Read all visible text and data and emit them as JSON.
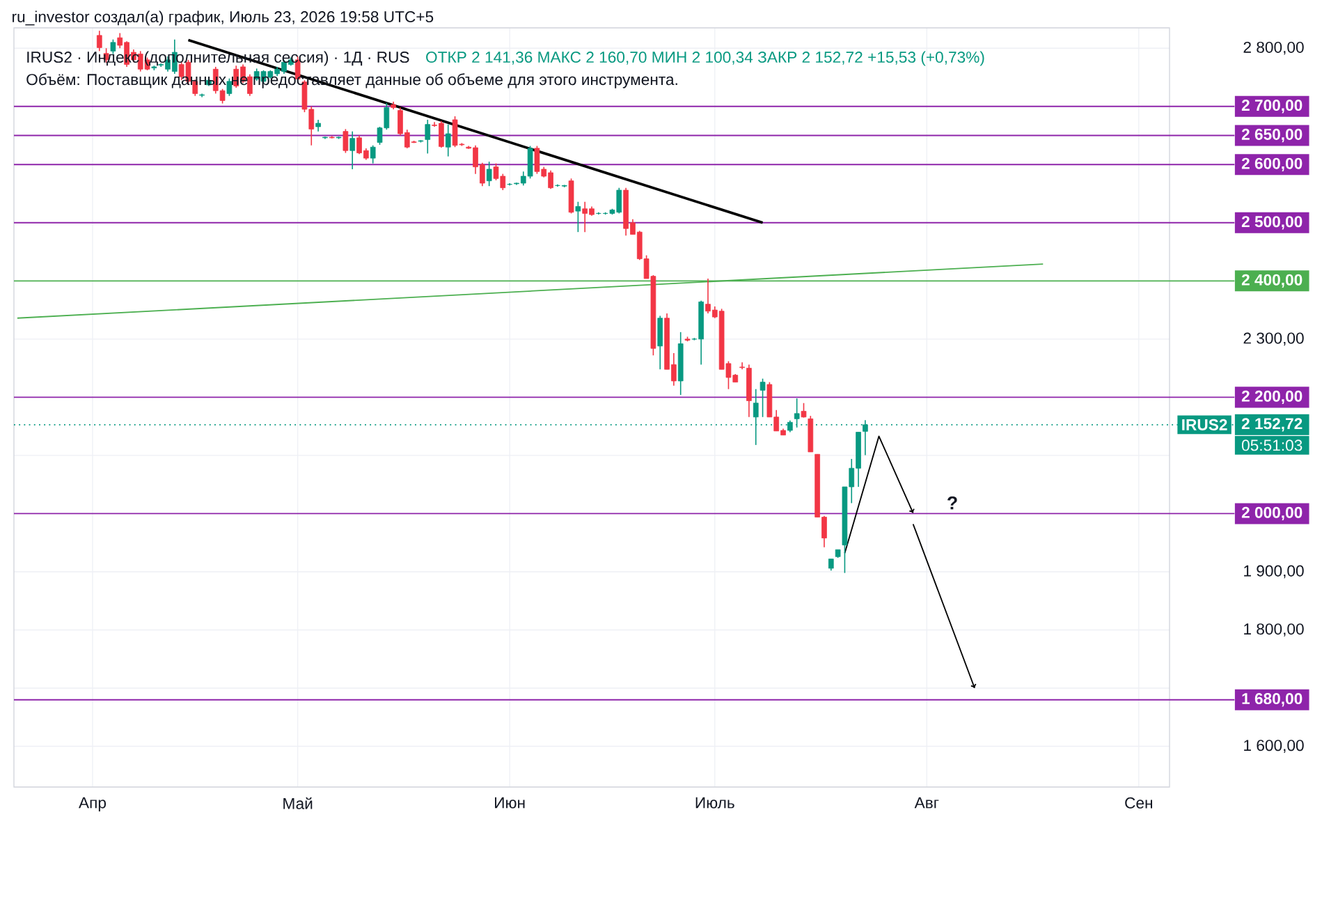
{
  "chart_data": {
    "type": "candlestick",
    "title": "IRUS2 · Индекс (дополнительная сессия) · 1Д · RUS",
    "subtitle": "ОТКР 2 141,36  МАКС 2 160,70  МИН 2 100,34  ЗАКР 2 152,72  +15,53 (+0,73%)",
    "annotations": [
      "ru_investor создал(а) график, Июль 23, 2026 19:58 UTC+5",
      "Объём: Поставщик данных не предоставляет данные об объеме для этого инструмента.",
      "IRUS2",
      "05:51:03",
      "?"
    ],
    "categories": [
      null,
      null,
      null,
      null,
      null,
      null,
      null,
      null,
      null,
      null,
      null,
      "Апр",
      null,
      null,
      null,
      null,
      null,
      null,
      null,
      null,
      null,
      null,
      null,
      null,
      null,
      null,
      null,
      null,
      null,
      null,
      null,
      null,
      null,
      null,
      null,
      null,
      null,
      null,
      null,
      null,
      null,
      "Май",
      null,
      null,
      null,
      null,
      null,
      null,
      null,
      null,
      null,
      null,
      null,
      null,
      null,
      null,
      null,
      null,
      null,
      null,
      null,
      null,
      null,
      null,
      null,
      null,
      null,
      null,
      null,
      null,
      null,
      null,
      "Июн",
      null,
      null,
      null,
      null,
      null,
      null,
      null,
      null,
      null,
      null,
      null,
      null,
      null,
      null,
      null,
      null,
      null,
      null,
      null,
      null,
      null,
      null,
      null,
      null,
      null,
      null,
      null,
      null,
      null,
      "Июль",
      null,
      null,
      null,
      null,
      null,
      null,
      null,
      null,
      null,
      null,
      null,
      null,
      null,
      null,
      null,
      null,
      null,
      null,
      null,
      null,
      null,
      null,
      null,
      null,
      null,
      null,
      null,
      null,
      null,
      null,
      "Авг",
      null,
      null,
      null,
      null,
      null,
      null,
      null,
      null,
      null,
      null,
      null,
      null,
      null,
      null,
      null,
      null,
      null,
      null,
      null,
      null,
      null,
      null,
      null,
      null,
      null,
      null,
      null,
      null,
      null,
      null,
      "Сен",
      null,
      null,
      null,
      null
    ],
    "ohlc": [
      null,
      null,
      null,
      null,
      null,
      null,
      null,
      null,
      null,
      null,
      null,
      null,
      [
        2822,
        2830,
        2795,
        2801
      ],
      [
        2791,
        2800,
        2775,
        2780
      ],
      [
        2795,
        2815,
        2790,
        2810
      ],
      [
        2818,
        2826,
        2800,
        2805
      ],
      [
        2810,
        2812,
        2768,
        2772
      ],
      [
        2793,
        2798,
        2776,
        2780
      ],
      [
        2790,
        2795,
        2760,
        2764
      ],
      [
        2780,
        2784,
        2762,
        2764
      ],
      [
        2766,
        2770,
        2762,
        2768
      ],
      [
        2771,
        2774,
        2768,
        2772
      ],
      [
        2764,
        2786,
        2760,
        2780
      ],
      [
        2760,
        2815,
        2756,
        2793
      ],
      [
        2772,
        2776,
        2745,
        2751
      ],
      [
        2776,
        2780,
        2738,
        2743
      ],
      [
        2743,
        2746,
        2718,
        2722
      ],
      [
        2719,
        2722,
        2716,
        2720
      ],
      [
        2737,
        2750,
        2735,
        2745
      ],
      [
        2764,
        2768,
        2722,
        2727
      ],
      [
        2727,
        2730,
        2705,
        2710
      ],
      [
        2722,
        2748,
        2718,
        2743
      ],
      [
        2764,
        2770,
        2732,
        2735
      ],
      [
        2768,
        2772,
        2740,
        2743
      ],
      [
        2751,
        2755,
        2718,
        2722
      ],
      [
        2747,
        2765,
        2744,
        2760
      ],
      [
        2743,
        2762,
        2740,
        2760
      ],
      [
        2750,
        2762,
        2748,
        2760
      ],
      [
        2756,
        2768,
        2752,
        2764
      ],
      [
        2760,
        2780,
        2756,
        2776
      ],
      [
        2772,
        2784,
        2770,
        2780
      ],
      [
        2780,
        2786,
        2745,
        2747
      ],
      [
        2742,
        2745,
        2690,
        2695
      ],
      [
        2695,
        2700,
        2633,
        2661
      ],
      [
        2665,
        2677,
        2657,
        2671
      ],
      [
        2646,
        2648,
        2644,
        2647
      ],
      [
        2647,
        2649,
        2645,
        2646
      ],
      [
        2646,
        2648,
        2644,
        2647
      ],
      [
        2657,
        2661,
        2620,
        2624
      ],
      [
        2624,
        2657,
        2592,
        2645
      ],
      [
        2646,
        2650,
        2618,
        2620
      ],
      [
        2624,
        2628,
        2608,
        2611
      ],
      [
        2611,
        2633,
        2602,
        2630
      ],
      [
        2638,
        2665,
        2634,
        2663
      ],
      [
        2663,
        2706,
        2660,
        2698
      ],
      [
        2703,
        2708,
        2695,
        2698
      ],
      [
        2693,
        2698,
        2650,
        2653
      ],
      [
        2655,
        2660,
        2628,
        2630
      ],
      [
        2639,
        2641,
        2637,
        2638
      ],
      [
        2640,
        2642,
        2638,
        2641
      ],
      [
        2643,
        2677,
        2619,
        2669
      ],
      [
        2668,
        2673,
        2665,
        2667
      ],
      [
        2671,
        2675,
        2629,
        2631
      ],
      [
        2630,
        2669,
        2614,
        2653
      ],
      [
        2677,
        2683,
        2630,
        2633
      ],
      [
        2635,
        2637,
        2632,
        2634
      ],
      [
        2630,
        2632,
        2627,
        2628
      ],
      [
        2629,
        2633,
        2584,
        2596
      ],
      [
        2600,
        2603,
        2563,
        2568
      ],
      [
        2572,
        2605,
        2563,
        2592
      ],
      [
        2596,
        2602,
        2573,
        2576
      ],
      [
        2580,
        2584,
        2556,
        2560
      ],
      [
        2566,
        2568,
        2564,
        2566
      ],
      [
        2567,
        2569,
        2565,
        2568
      ],
      [
        2568,
        2588,
        2564,
        2580
      ],
      [
        2580,
        2632,
        2576,
        2628
      ],
      [
        2628,
        2632,
        2584,
        2588
      ],
      [
        2592,
        2596,
        2578,
        2580
      ],
      [
        2586,
        2590,
        2558,
        2560
      ],
      [
        2564,
        2566,
        2562,
        2564
      ],
      [
        2563,
        2565,
        2561,
        2564
      ],
      [
        2572,
        2576,
        2516,
        2518
      ],
      [
        2520,
        2536,
        2484,
        2528
      ],
      [
        2524,
        2536,
        2484,
        2516
      ],
      [
        2524,
        2528,
        2512,
        2514
      ],
      [
        2516,
        2518,
        2514,
        2516
      ],
      [
        2516,
        2518,
        2514,
        2516
      ],
      [
        2516,
        2524,
        2514,
        2522
      ],
      [
        2518,
        2560,
        2516,
        2556
      ],
      [
        2556,
        2560,
        2478,
        2490
      ],
      [
        2500,
        2506,
        2480,
        2480
      ],
      [
        2484,
        2486,
        2436,
        2438
      ],
      [
        2438,
        2444,
        2404,
        2404
      ],
      [
        2408,
        2410,
        2272,
        2284
      ],
      [
        2288,
        2340,
        2248,
        2336
      ],
      [
        2336,
        2344,
        2248,
        2248
      ],
      [
        2256,
        2276,
        2220,
        2228
      ],
      [
        2228,
        2312,
        2204,
        2292
      ],
      [
        2300,
        2304,
        2296,
        2298
      ],
      [
        2300,
        2302,
        2298,
        2300
      ],
      [
        2300,
        2366,
        2256,
        2364
      ],
      [
        2360,
        2404,
        2344,
        2348
      ],
      [
        2350,
        2356,
        2336,
        2338
      ],
      [
        2348,
        2352,
        2248,
        2248
      ],
      [
        2258,
        2262,
        2214,
        2234
      ],
      [
        2238,
        2240,
        2226,
        2226
      ],
      [
        2252,
        2260,
        2248,
        2251
      ],
      [
        2250,
        2256,
        2166,
        2194
      ],
      [
        2166,
        2214,
        2118,
        2190
      ],
      [
        2212,
        2232,
        2166,
        2226
      ],
      [
        2222,
        2226,
        2166,
        2166
      ],
      [
        2166,
        2178,
        2142,
        2142
      ],
      [
        2143,
        2146,
        2135,
        2135
      ],
      [
        2143,
        2160,
        2140,
        2157
      ],
      [
        2163,
        2198,
        2148,
        2172
      ],
      [
        2176,
        2190,
        2165,
        2166
      ],
      [
        2163,
        2168,
        2106,
        2106
      ],
      [
        2102,
        2102,
        1994,
        1994
      ],
      [
        1994,
        1996,
        1942,
        1958
      ],
      [
        1906,
        1922,
        1902,
        1922
      ],
      [
        1926,
        1938,
        1924,
        1938
      ],
      [
        1946,
        2046,
        1898,
        2046
      ],
      [
        2046,
        2094,
        2018,
        2078
      ],
      [
        2078,
        2140,
        2046,
        2140
      ],
      [
        2141.36,
        2160.7,
        2100.34,
        2152.72
      ],
      null,
      null,
      null,
      null,
      null,
      null,
      null,
      null,
      null,
      null,
      null,
      null,
      null,
      null,
      null,
      null,
      null,
      null,
      null,
      null,
      null,
      null,
      null,
      null,
      null,
      null,
      null,
      null,
      null,
      null,
      null,
      null,
      null,
      null,
      null,
      null,
      null,
      null,
      null,
      null,
      null,
      null,
      null,
      null
    ],
    "series": [
      {
        "type": "line",
        "color": "#000000",
        "values": [
          null,
          null,
          null,
          null,
          null,
          null,
          null,
          null,
          null,
          null,
          null,
          null,
          null,
          null,
          null,
          null,
          null,
          null,
          null,
          null,
          null,
          null,
          null,
          null,
          null,
          2814,
          null,
          null,
          null,
          null,
          null,
          null,
          null,
          null,
          null,
          null,
          null,
          null,
          null,
          null,
          null,
          null,
          null,
          null,
          null,
          null,
          null,
          null,
          null,
          null,
          null,
          null,
          null,
          null,
          null,
          null,
          null,
          null,
          null,
          null,
          null,
          null,
          null,
          null,
          null,
          null,
          null,
          null,
          null,
          null,
          null,
          null,
          null,
          null,
          null,
          null,
          null,
          null,
          null,
          null,
          null,
          null,
          null,
          null,
          null,
          null,
          null,
          null,
          null,
          null,
          null,
          null,
          null,
          null,
          null,
          null,
          null,
          null,
          null,
          null,
          null,
          null,
          null,
          null,
          null,
          null,
          null,
          null,
          null,
          2500,
          null,
          null,
          null,
          null,
          null,
          null,
          null,
          null,
          null,
          null,
          null,
          null,
          null,
          null,
          null,
          null,
          null,
          null,
          null,
          null,
          null,
          null,
          null,
          null,
          null,
          null,
          null,
          null,
          null,
          null,
          null,
          null,
          null,
          null,
          null,
          null,
          null,
          null,
          null,
          null,
          null,
          null,
          null,
          null,
          null,
          null,
          null,
          null,
          null,
          null,
          null,
          null,
          null,
          null,
          null,
          null,
          null,
          null,
          null
        ]
      },
      {
        "type": "line",
        "color": "#4caf50",
        "values": [
          2336,
          null,
          null,
          null,
          null,
          null,
          null,
          null,
          null,
          null,
          null,
          null,
          null,
          null,
          null,
          null,
          null,
          null,
          null,
          null,
          null,
          null,
          null,
          null,
          null,
          null,
          null,
          null,
          null,
          null,
          null,
          null,
          null,
          null,
          null,
          null,
          null,
          null,
          null,
          null,
          null,
          null,
          null,
          null,
          null,
          null,
          null,
          null,
          null,
          null,
          null,
          null,
          null,
          null,
          null,
          null,
          null,
          null,
          null,
          null,
          null,
          null,
          null,
          null,
          null,
          null,
          null,
          null,
          null,
          null,
          null,
          null,
          null,
          null,
          null,
          null,
          null,
          null,
          null,
          null,
          null,
          null,
          null,
          null,
          null,
          null,
          null,
          null,
          null,
          null,
          null,
          null,
          null,
          null,
          null,
          null,
          null,
          null,
          null,
          null,
          null,
          null,
          null,
          null,
          null,
          null,
          null,
          null,
          null,
          null,
          null,
          null,
          null,
          null,
          null,
          null,
          null,
          null,
          null,
          null,
          null,
          null,
          null,
          null,
          null,
          null,
          null,
          null,
          null,
          null,
          null,
          null,
          null,
          null,
          null,
          null,
          null,
          null,
          null,
          null,
          null,
          null,
          null,
          null,
          null,
          null,
          null,
          null,
          null,
          null,
          2429,
          null,
          null,
          null,
          null,
          null,
          null,
          null,
          null,
          null,
          null,
          null,
          null,
          null,
          null,
          null,
          null,
          null,
          null
        ]
      },
      {
        "type": "line",
        "color": "#000000",
        "values": [
          null,
          null,
          null,
          null,
          null,
          null,
          null,
          null,
          null,
          null,
          null,
          null,
          null,
          null,
          null,
          null,
          null,
          null,
          null,
          null,
          null,
          null,
          null,
          null,
          null,
          null,
          null,
          null,
          null,
          null,
          null,
          null,
          null,
          null,
          null,
          null,
          null,
          null,
          null,
          null,
          null,
          null,
          null,
          null,
          null,
          null,
          null,
          null,
          null,
          null,
          null,
          null,
          null,
          null,
          null,
          null,
          null,
          null,
          null,
          null,
          null,
          null,
          null,
          null,
          null,
          null,
          null,
          null,
          null,
          null,
          null,
          null,
          null,
          null,
          null,
          null,
          null,
          null,
          null,
          null,
          null,
          null,
          null,
          null,
          null,
          null,
          null,
          null,
          null,
          null,
          null,
          null,
          null,
          null,
          null,
          null,
          null,
          null,
          null,
          null,
          null,
          null,
          null,
          null,
          null,
          null,
          null,
          null,
          null,
          null,
          null,
          null,
          null,
          null,
          null,
          null,
          null,
          null,
          null,
          null,
          null,
          1932,
          null,
          null,
          null,
          null,
          2133,
          null,
          null,
          null,
          null,
          2001,
          null,
          null,
          null,
          null,
          null,
          null,
          null,
          null,
          null,
          null,
          null,
          null,
          null,
          null,
          null,
          null,
          null,
          null,
          null,
          null,
          null,
          null,
          null,
          null,
          null,
          null,
          null,
          null,
          null,
          null,
          null,
          null,
          null,
          null,
          null,
          null,
          null
        ]
      },
      {
        "type": "line",
        "color": "#000000",
        "values": [
          null,
          null,
          null,
          null,
          null,
          null,
          null,
          null,
          null,
          null,
          null,
          null,
          null,
          null,
          null,
          null,
          null,
          null,
          null,
          null,
          null,
          null,
          null,
          null,
          null,
          null,
          null,
          null,
          null,
          null,
          null,
          null,
          null,
          null,
          null,
          null,
          null,
          null,
          null,
          null,
          null,
          null,
          null,
          null,
          null,
          null,
          null,
          null,
          null,
          null,
          null,
          null,
          null,
          null,
          null,
          null,
          null,
          null,
          null,
          null,
          null,
          null,
          null,
          null,
          null,
          null,
          null,
          null,
          null,
          null,
          null,
          null,
          null,
          null,
          null,
          null,
          null,
          null,
          null,
          null,
          null,
          null,
          null,
          null,
          null,
          null,
          null,
          null,
          null,
          null,
          null,
          null,
          null,
          null,
          null,
          null,
          null,
          null,
          null,
          null,
          null,
          null,
          null,
          null,
          null,
          null,
          null,
          null,
          null,
          null,
          null,
          null,
          null,
          null,
          null,
          null,
          null,
          null,
          null,
          null,
          null,
          null,
          null,
          null,
          null,
          null,
          null,
          null,
          null,
          null,
          null,
          1982,
          null,
          null,
          null,
          null,
          null,
          null,
          null,
          null,
          1700,
          null,
          null,
          null,
          null,
          null,
          null,
          null,
          null,
          null,
          null,
          null,
          null,
          null,
          null,
          null,
          null,
          null,
          null,
          null,
          null,
          null,
          null,
          null,
          null,
          null,
          null,
          null,
          null
        ]
      }
    ],
    "ref_lines": [
      {
        "axis": "y",
        "value": 2700,
        "label": "2 700,00",
        "color": "#8e24aa"
      },
      {
        "axis": "y",
        "value": 2650,
        "label": "2 650,00",
        "color": "#8e24aa"
      },
      {
        "axis": "y",
        "value": 2600,
        "label": "2 600,00",
        "color": "#8e24aa"
      },
      {
        "axis": "y",
        "value": 2500,
        "label": "2 500,00",
        "color": "#8e24aa"
      },
      {
        "axis": "y",
        "value": 2400,
        "label": "2 400,00",
        "color": "#4caf50"
      },
      {
        "axis": "y",
        "value": 2200,
        "label": "2 200,00",
        "color": "#8e24aa"
      },
      {
        "axis": "y",
        "value": 2152.72,
        "label": "2 152,72",
        "color": "#089981",
        "line_style": "dotted"
      },
      {
        "axis": "y",
        "value": 2000,
        "label": "2 000,00",
        "color": "#8e24aa"
      },
      {
        "axis": "y",
        "value": 1680,
        "label": "1 680,00",
        "color": "#8e24aa"
      }
    ],
    "ylim": [
      1530,
      2835
    ],
    "yticks": [
      {
        "value": 1600,
        "label": "1 600,00"
      },
      {
        "value": 1700,
        "label": null
      },
      {
        "value": 1800,
        "label": "1 800,00"
      },
      {
        "value": 1900,
        "label": "1 900,00"
      },
      {
        "value": 2100,
        "label": null
      },
      {
        "value": 2300,
        "label": "2 300,00"
      },
      {
        "value": 2800,
        "label": "2 800,00"
      }
    ],
    "grid": true
  }
}
